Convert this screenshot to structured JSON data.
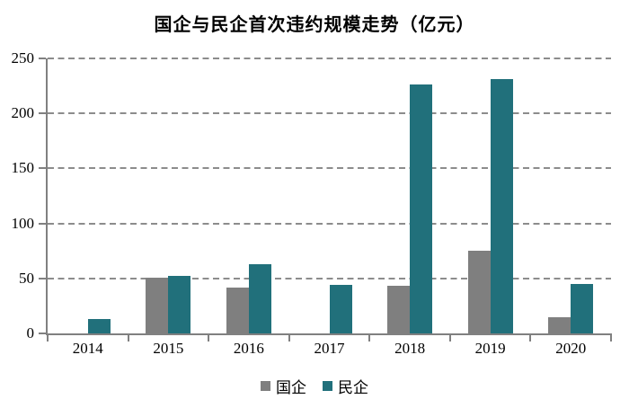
{
  "title": "国企与民企首次违约规模走势（亿元）",
  "colors": {
    "soe_bar": "#7F7F7F",
    "poe_bar": "#21707B",
    "axis": "#808080",
    "gridline": "#8C8C8C",
    "text": "#000000",
    "background": "#FFFFFF"
  },
  "legend": {
    "items": [
      {
        "key": "soe",
        "label": "国企",
        "color": "#7F7F7F"
      },
      {
        "key": "poe",
        "label": "民企",
        "color": "#21707B"
      }
    ],
    "position": "bottom"
  },
  "chart_data": {
    "type": "bar",
    "title": "国企与民企首次违约规模走势（亿元）",
    "categories": [
      "2014",
      "2015",
      "2016",
      "2017",
      "2018",
      "2019",
      "2020"
    ],
    "series": [
      {
        "key": "soe",
        "name": "国企",
        "color": "#7F7F7F",
        "values": [
          0,
          51,
          42,
          0,
          43,
          75,
          15
        ]
      },
      {
        "key": "poe",
        "name": "民企",
        "color": "#21707B",
        "values": [
          13,
          52,
          63,
          44,
          226,
          231,
          45
        ]
      }
    ],
    "xlabel": "",
    "ylabel": "",
    "ylim": [
      0,
      250
    ],
    "yticks": [
      0,
      50,
      100,
      150,
      200,
      250
    ],
    "grid": "horizontal-dashed",
    "legend_position": "bottom",
    "unit": "亿元"
  }
}
